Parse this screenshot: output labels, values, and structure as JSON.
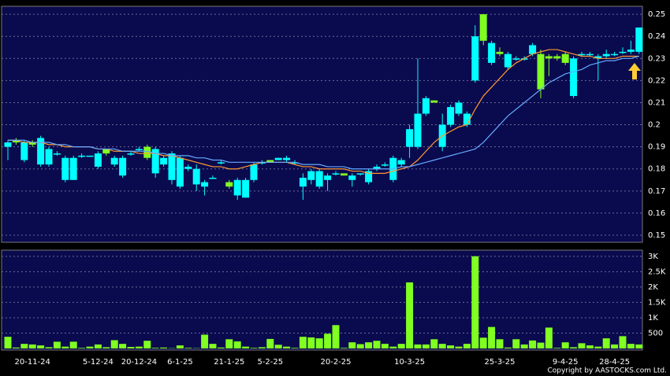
{
  "chart_data": {
    "type": "candlestick",
    "categories": [
      null,
      null,
      null,
      "20-11-24",
      null,
      null,
      null,
      null,
      null,
      null,
      null,
      "5-12-24",
      null,
      null,
      null,
      null,
      "20-12-24",
      null,
      null,
      null,
      null,
      "6-1-25",
      null,
      null,
      null,
      null,
      null,
      "21-1-25",
      null,
      null,
      null,
      null,
      "5-2-25",
      null,
      null,
      null,
      null,
      null,
      null,
      null,
      "20-2-25",
      null,
      null,
      null,
      null,
      null,
      null,
      null,
      null,
      "10-3-25",
      null,
      null,
      null,
      null,
      null,
      null,
      null,
      null,
      null,
      null,
      "25-3-25",
      null,
      null,
      null,
      null,
      null,
      null,
      null,
      "9-4-25",
      null,
      null,
      null,
      null,
      null,
      "28-4-25",
      null,
      null,
      null
    ],
    "open": [
      0.19,
      0.193,
      0.184,
      0.192,
      0.182,
      0.182,
      0.187,
      0.175,
      0.175,
      0.186,
      0.186,
      0.181,
      0.189,
      0.182,
      0.177,
      0.187,
      0.189,
      0.19,
      0.178,
      0.182,
      0.175,
      0.172,
      0.18,
      0.173,
      0.172,
      0.176,
      0.183,
      0.174,
      0.168,
      0.167,
      0.175,
      0.183,
      0.184,
      0.184,
      0.184,
      0.183,
      0.172,
      0.175,
      0.172,
      0.175,
      0.178,
      0.178,
      0.175,
      0.178,
      0.174,
      0.18,
      0.182,
      0.175,
      0.182,
      0.19,
      0.19,
      0.205,
      0.211,
      0.19,
      0.2,
      0.205,
      0.2,
      0.22,
      0.25,
      0.228,
      0.233,
      0.226,
      0.23,
      0.23,
      0.232,
      0.232,
      0.231,
      0.231,
      0.232,
      0.213,
      0.232,
      0.232,
      0.23,
      0.231,
      0.232,
      0.233,
      0.233,
      0.233
    ],
    "high": [
      0.193,
      0.194,
      0.193,
      0.193,
      0.195,
      0.19,
      0.188,
      0.186,
      0.186,
      0.187,
      0.186,
      0.188,
      0.189,
      0.186,
      0.186,
      0.188,
      0.19,
      0.191,
      0.19,
      0.186,
      0.188,
      0.186,
      0.182,
      0.182,
      0.175,
      0.177,
      0.184,
      0.175,
      0.176,
      0.176,
      0.183,
      0.184,
      0.184,
      0.185,
      0.186,
      0.184,
      0.178,
      0.18,
      0.18,
      0.178,
      0.179,
      0.178,
      0.178,
      0.178,
      0.18,
      0.182,
      0.183,
      0.186,
      0.185,
      0.2,
      0.23,
      0.213,
      0.211,
      0.205,
      0.209,
      0.211,
      0.206,
      0.245,
      0.25,
      0.238,
      0.235,
      0.233,
      0.231,
      0.231,
      0.237,
      0.234,
      0.232,
      0.232,
      0.233,
      0.231,
      0.233,
      0.233,
      0.232,
      0.234,
      0.233,
      0.235,
      0.238,
      0.244
    ],
    "low": [
      0.184,
      0.191,
      0.183,
      0.19,
      0.181,
      0.181,
      0.186,
      0.174,
      0.175,
      0.185,
      0.186,
      0.18,
      0.186,
      0.181,
      0.176,
      0.186,
      0.188,
      0.184,
      0.176,
      0.181,
      0.173,
      0.171,
      0.179,
      0.17,
      0.168,
      0.176,
      0.182,
      0.171,
      0.166,
      0.167,
      0.174,
      0.182,
      0.183,
      0.184,
      0.183,
      0.182,
      0.166,
      0.173,
      0.171,
      0.17,
      0.177,
      0.177,
      0.172,
      0.177,
      0.173,
      0.179,
      0.181,
      0.174,
      0.181,
      0.185,
      0.189,
      0.204,
      0.21,
      0.188,
      0.199,
      0.204,
      0.199,
      0.219,
      0.236,
      0.227,
      0.231,
      0.225,
      0.229,
      0.229,
      0.231,
      0.212,
      0.222,
      0.229,
      0.227,
      0.212,
      0.231,
      0.231,
      0.22,
      0.23,
      0.231,
      0.232,
      0.232,
      0.232
    ],
    "close": [
      0.192,
      0.192,
      0.192,
      0.191,
      0.194,
      0.189,
      0.187,
      0.185,
      0.185,
      0.186,
      0.186,
      0.187,
      0.187,
      0.185,
      0.185,
      0.187,
      0.189,
      0.185,
      0.189,
      0.185,
      0.187,
      0.185,
      0.181,
      0.18,
      0.174,
      0.176,
      0.183,
      0.172,
      0.175,
      0.175,
      0.182,
      0.183,
      0.183,
      0.185,
      0.185,
      0.183,
      0.176,
      0.179,
      0.179,
      0.177,
      0.178,
      0.177,
      0.177,
      0.178,
      0.179,
      0.181,
      0.182,
      0.185,
      0.184,
      0.198,
      0.205,
      0.212,
      0.21,
      0.2,
      0.208,
      0.21,
      0.205,
      0.24,
      0.238,
      0.237,
      0.232,
      0.232,
      0.23,
      0.23,
      0.236,
      0.216,
      0.23,
      0.23,
      0.228,
      0.23,
      0.232,
      0.232,
      0.231,
      0.232,
      0.232,
      0.233,
      0.234,
      0.244
    ],
    "ma_short": [
      0.193,
      0.193,
      0.192,
      0.192,
      0.192,
      0.191,
      0.191,
      0.19,
      0.19,
      0.19,
      0.19,
      0.189,
      0.189,
      0.188,
      0.188,
      0.188,
      0.187,
      0.187,
      0.187,
      0.186,
      0.186,
      0.185,
      0.184,
      0.183,
      0.182,
      0.181,
      0.181,
      0.18,
      0.18,
      0.181,
      0.182,
      0.183,
      0.183,
      0.183,
      0.183,
      0.182,
      0.181,
      0.181,
      0.18,
      0.18,
      0.18,
      0.18,
      0.179,
      0.179,
      0.178,
      0.178,
      0.178,
      0.179,
      0.18,
      0.181,
      0.184,
      0.188,
      0.192,
      0.195,
      0.197,
      0.199,
      0.2,
      0.207,
      0.213,
      0.217,
      0.221,
      0.225,
      0.228,
      0.23,
      0.232,
      0.233,
      0.234,
      0.234,
      0.233,
      0.232,
      0.231,
      0.231,
      0.23,
      0.23,
      0.23,
      0.231,
      0.231,
      0.231
    ],
    "ma_long": [
      0.193,
      0.193,
      0.193,
      0.192,
      0.192,
      0.192,
      0.191,
      0.191,
      0.19,
      0.19,
      0.19,
      0.189,
      0.189,
      0.189,
      0.188,
      0.188,
      0.188,
      0.188,
      0.187,
      0.187,
      0.186,
      0.186,
      0.186,
      0.185,
      0.185,
      0.184,
      0.184,
      0.183,
      0.183,
      0.183,
      0.183,
      0.183,
      0.183,
      0.183,
      0.183,
      0.183,
      0.182,
      0.182,
      0.182,
      0.181,
      0.181,
      0.181,
      0.18,
      0.18,
      0.18,
      0.18,
      0.18,
      0.18,
      0.181,
      0.181,
      0.182,
      0.183,
      0.184,
      0.185,
      0.186,
      0.187,
      0.188,
      0.189,
      0.192,
      0.196,
      0.2,
      0.204,
      0.207,
      0.21,
      0.213,
      0.216,
      0.219,
      0.221,
      0.223,
      0.224,
      0.225,
      0.227,
      0.228,
      0.229,
      0.229,
      0.23,
      0.23,
      0.231
    ],
    "volume": [
      380,
      30,
      150,
      130,
      100,
      40,
      220,
      60,
      220,
      20,
      60,
      130,
      40,
      270,
      150,
      50,
      60,
      250,
      20,
      30,
      10,
      100,
      20,
      10,
      450,
      150,
      30,
      300,
      230,
      60,
      20,
      40,
      310,
      120,
      60,
      20,
      380,
      360,
      330,
      480,
      760,
      20,
      200,
      140,
      200,
      250,
      150,
      60,
      150,
      2150,
      130,
      130,
      300,
      150,
      100,
      60,
      150,
      3000,
      350,
      700,
      300,
      30,
      300,
      130,
      260,
      190,
      680,
      20,
      200,
      40,
      170,
      100,
      60,
      330,
      130,
      400,
      150,
      130
    ],
    "up_color": "#00ffff",
    "down_color": "#80ff20",
    "volume_color": "#80ff20",
    "ma_short_color": "#ff9933",
    "ma_long_color": "#66aaff",
    "ylim": [
      0.1468,
      0.2536
    ],
    "yticks": [
      0.15,
      0.16,
      0.17,
      0.18,
      0.19,
      0.2,
      0.21,
      0.22,
      0.23,
      0.24,
      0.25
    ],
    "y2lim": [
      0,
      3200
    ],
    "y2ticks": [
      500,
      {
        "value": 1000,
        "label": "1K"
      },
      {
        "value": 1500,
        "label": "1.5K"
      },
      {
        "value": 2000,
        "label": "2K"
      },
      {
        "value": 2500,
        "label": "2.5K"
      },
      {
        "value": 3000,
        "label": "3K"
      }
    ],
    "grid": true,
    "copyright": "Copyright by AASTOCKS.com Ltd."
  }
}
